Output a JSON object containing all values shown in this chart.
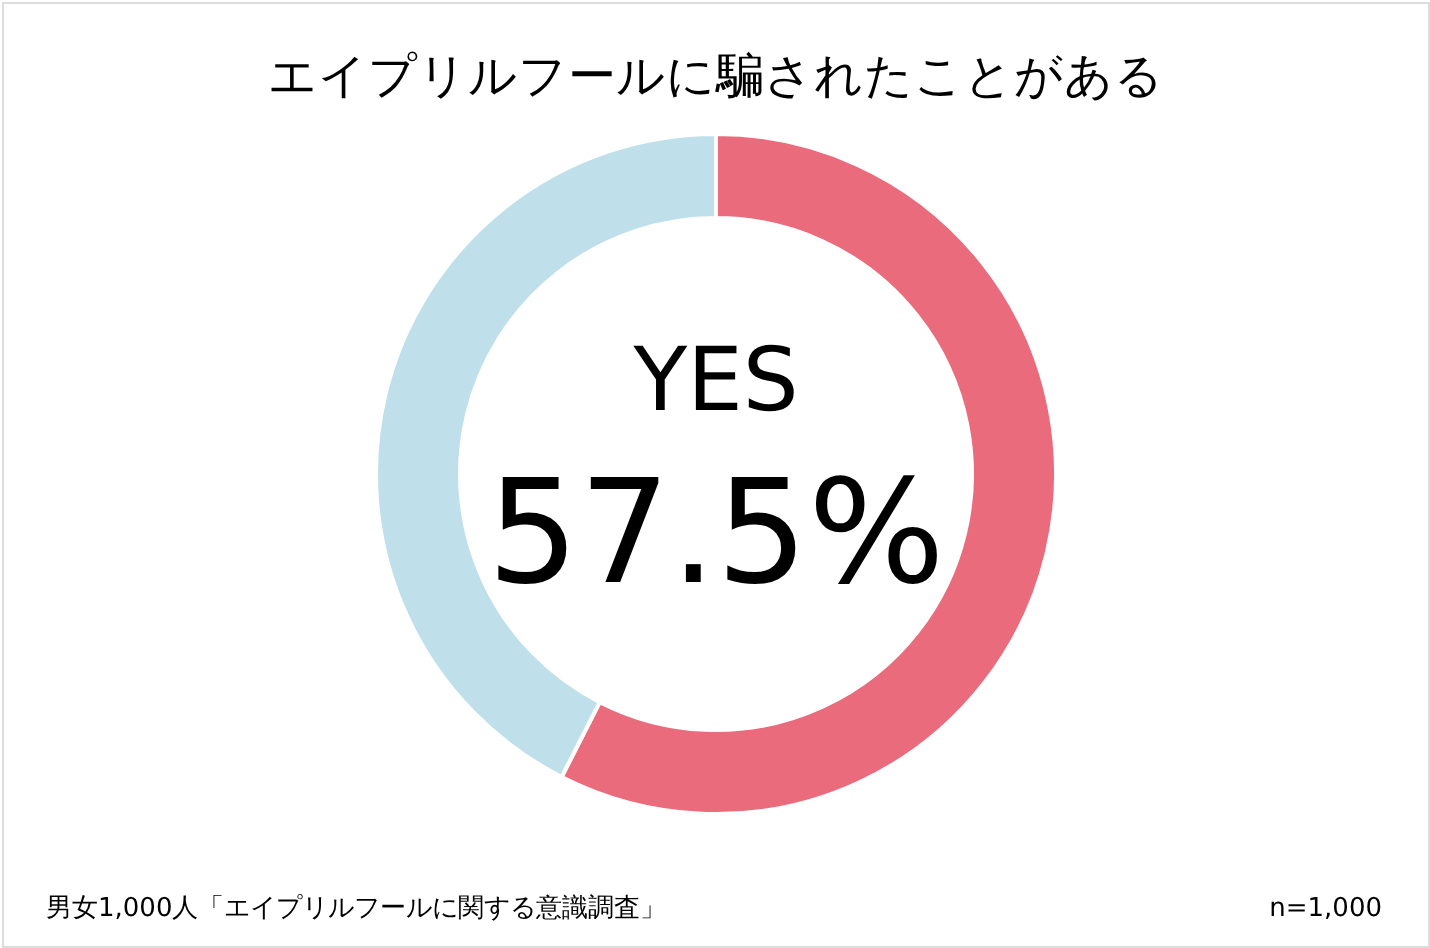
{
  "chart_data": {
    "type": "donut",
    "title": "エイプリルフールに騙されたことがある",
    "categories": [
      "YES",
      null
    ],
    "values": [
      57.5,
      42.5
    ],
    "colors": [
      "#e96b7c",
      "#bfe0ea"
    ],
    "value_labels": [
      "57.5%",
      null
    ],
    "annotations": [
      "男女1,000人「エイプリルフールに関する意識調査」",
      "n=1,000"
    ]
  }
}
